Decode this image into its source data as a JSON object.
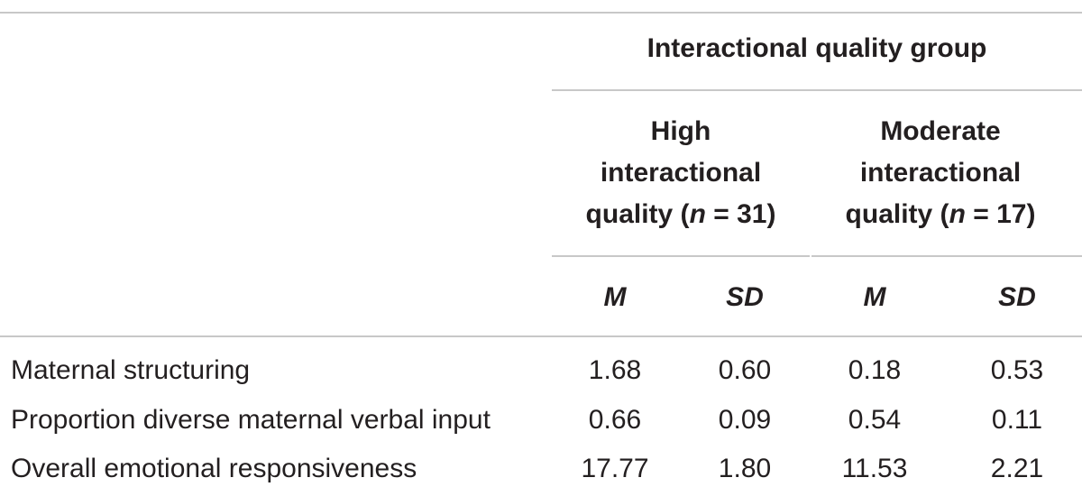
{
  "table": {
    "group_header": "Interactional quality group",
    "groups": [
      {
        "line1": "High",
        "line2": "interactional",
        "line3_prefix": "quality (",
        "n_symbol": "n",
        "line3_suffix": " = 31)"
      },
      {
        "line1": "Moderate",
        "line2": "interactional",
        "line3_prefix": "quality (",
        "n_symbol": "n",
        "line3_suffix": " = 17)"
      }
    ],
    "stat_headers": [
      "M",
      "SD",
      "M",
      "SD"
    ],
    "rows": [
      {
        "label": "Maternal structuring",
        "values": [
          "1.68",
          "0.60",
          "0.18",
          "0.53"
        ]
      },
      {
        "label": "Proportion diverse maternal verbal input",
        "values": [
          "0.66",
          "0.09",
          "0.54",
          "0.11"
        ]
      },
      {
        "label": "Overall emotional responsiveness",
        "values": [
          "17.77",
          "1.80",
          "11.53",
          "2.21"
        ]
      }
    ]
  }
}
